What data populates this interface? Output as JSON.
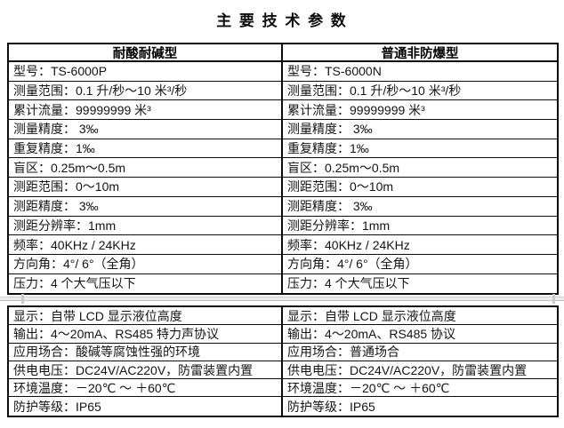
{
  "title": "主 要 技 术 参 数",
  "table": {
    "columns": [
      {
        "header": "耐酸耐碱型",
        "spec_rows": [
          "型号：TS-6000P",
          "测量范围：0.1 升/秒～10 米³/秒",
          "累计流量：99999999 米³",
          "测量精度： 3‰",
          "重复精度：1‰",
          "盲区：0.25m～0.5m",
          "测距范围：0～10m",
          "测距精度： 3‰",
          "测距分辨率：1mm",
          "频率：40KHz / 24KHz",
          "方向角：4°/ 6°（全角）",
          "压力：4 个大气压以下"
        ],
        "info_rows": [
          "显示：自带 LCD 显示液位高度",
          "输出：4～20mA、RS485 特力声协议",
          "应用场合：酸碱等腐蚀性强的环境",
          "供电电压：DC24V/AC220V，防雷装置内置",
          "环境温度：－20℃ ～ ＋60℃",
          "防护等级：IP65"
        ]
      },
      {
        "header": "普通非防爆型",
        "spec_rows": [
          "型号：TS-6000N",
          "测量范围：0.1 升/秒～10 米³/秒",
          "累计流量：99999999 米³",
          "测量精度： 3‰",
          "重复精度：1‰",
          "盲区：0.25m～0.5m",
          "测距范围：0～10m",
          "测距精度： 3‰",
          "测距分辨率：1mm",
          "频率：40KHz / 24KHz",
          "方向角：4°/ 6°（全角）",
          "压力：4 个大气压以下"
        ],
        "info_rows": [
          "显示：自带 LCD 显示液位高度",
          "输出：4～20mA、RS485 协议",
          "应用场合：普通场合",
          "供电电压：DC24V/AC220V，防雷装置内置",
          "环境温度：－20℃ ～ ＋60℃",
          "防护等级：IP65"
        ]
      }
    ]
  },
  "colors": {
    "border": "#0c0c0c",
    "text": "#141414",
    "artifact_gray": "#c9c9c9",
    "background": "#ffffff"
  }
}
